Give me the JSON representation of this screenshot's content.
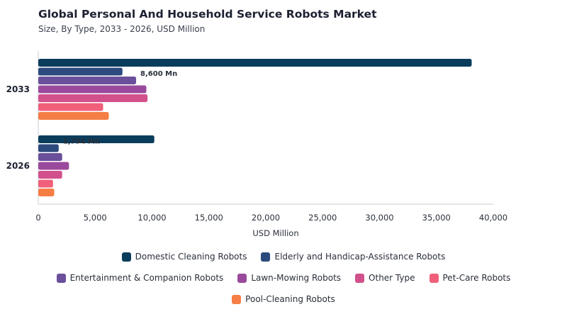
{
  "chart_data": {
    "type": "bar",
    "orientation": "horizontal",
    "title": "Global Personal And Household Service Robots Market",
    "subtitle": "Size, By Type, 2033 - 2026, USD Million",
    "xlabel": "USD Million",
    "xlim": [
      0,
      40000
    ],
    "xticks": [
      "0",
      "5,000",
      "10,000",
      "15,000",
      "20,000",
      "25,000",
      "30,000",
      "35,000",
      "40,000"
    ],
    "categories": [
      "2033",
      "2026"
    ],
    "series": [
      {
        "name": "Domestic Cleaning Robots",
        "color": "#0a3d5c",
        "values": [
          38100,
          10200
        ]
      },
      {
        "name": "Elderly and Handicap-Assistance Robots",
        "color": "#2c4a7e",
        "values": [
          7400,
          1794
        ]
      },
      {
        "name": "Entertainment & Companion Robots",
        "color": "#6a4f9a",
        "values": [
          8600,
          2100
        ]
      },
      {
        "name": "Lawn-Mowing Robots",
        "color": "#9a4a9c",
        "values": [
          9500,
          2700
        ]
      },
      {
        "name": "Other Type",
        "color": "#d2508c",
        "values": [
          9600,
          2100
        ]
      },
      {
        "name": "Pet-Care Robots",
        "color": "#f0607a",
        "values": [
          5700,
          1300
        ]
      },
      {
        "name": "Pool-Cleaning Robots",
        "color": "#f57e45",
        "values": [
          6200,
          1400
        ]
      }
    ],
    "annotations": [
      {
        "category": "2033",
        "series": "Entertainment & Companion Robots",
        "text": "8,600 Mn"
      },
      {
        "category": "2026",
        "series": "Elderly and Handicap-Assistance Robots",
        "text": "1,794 Mn"
      }
    ],
    "legend": "bottom",
    "grid": false
  }
}
